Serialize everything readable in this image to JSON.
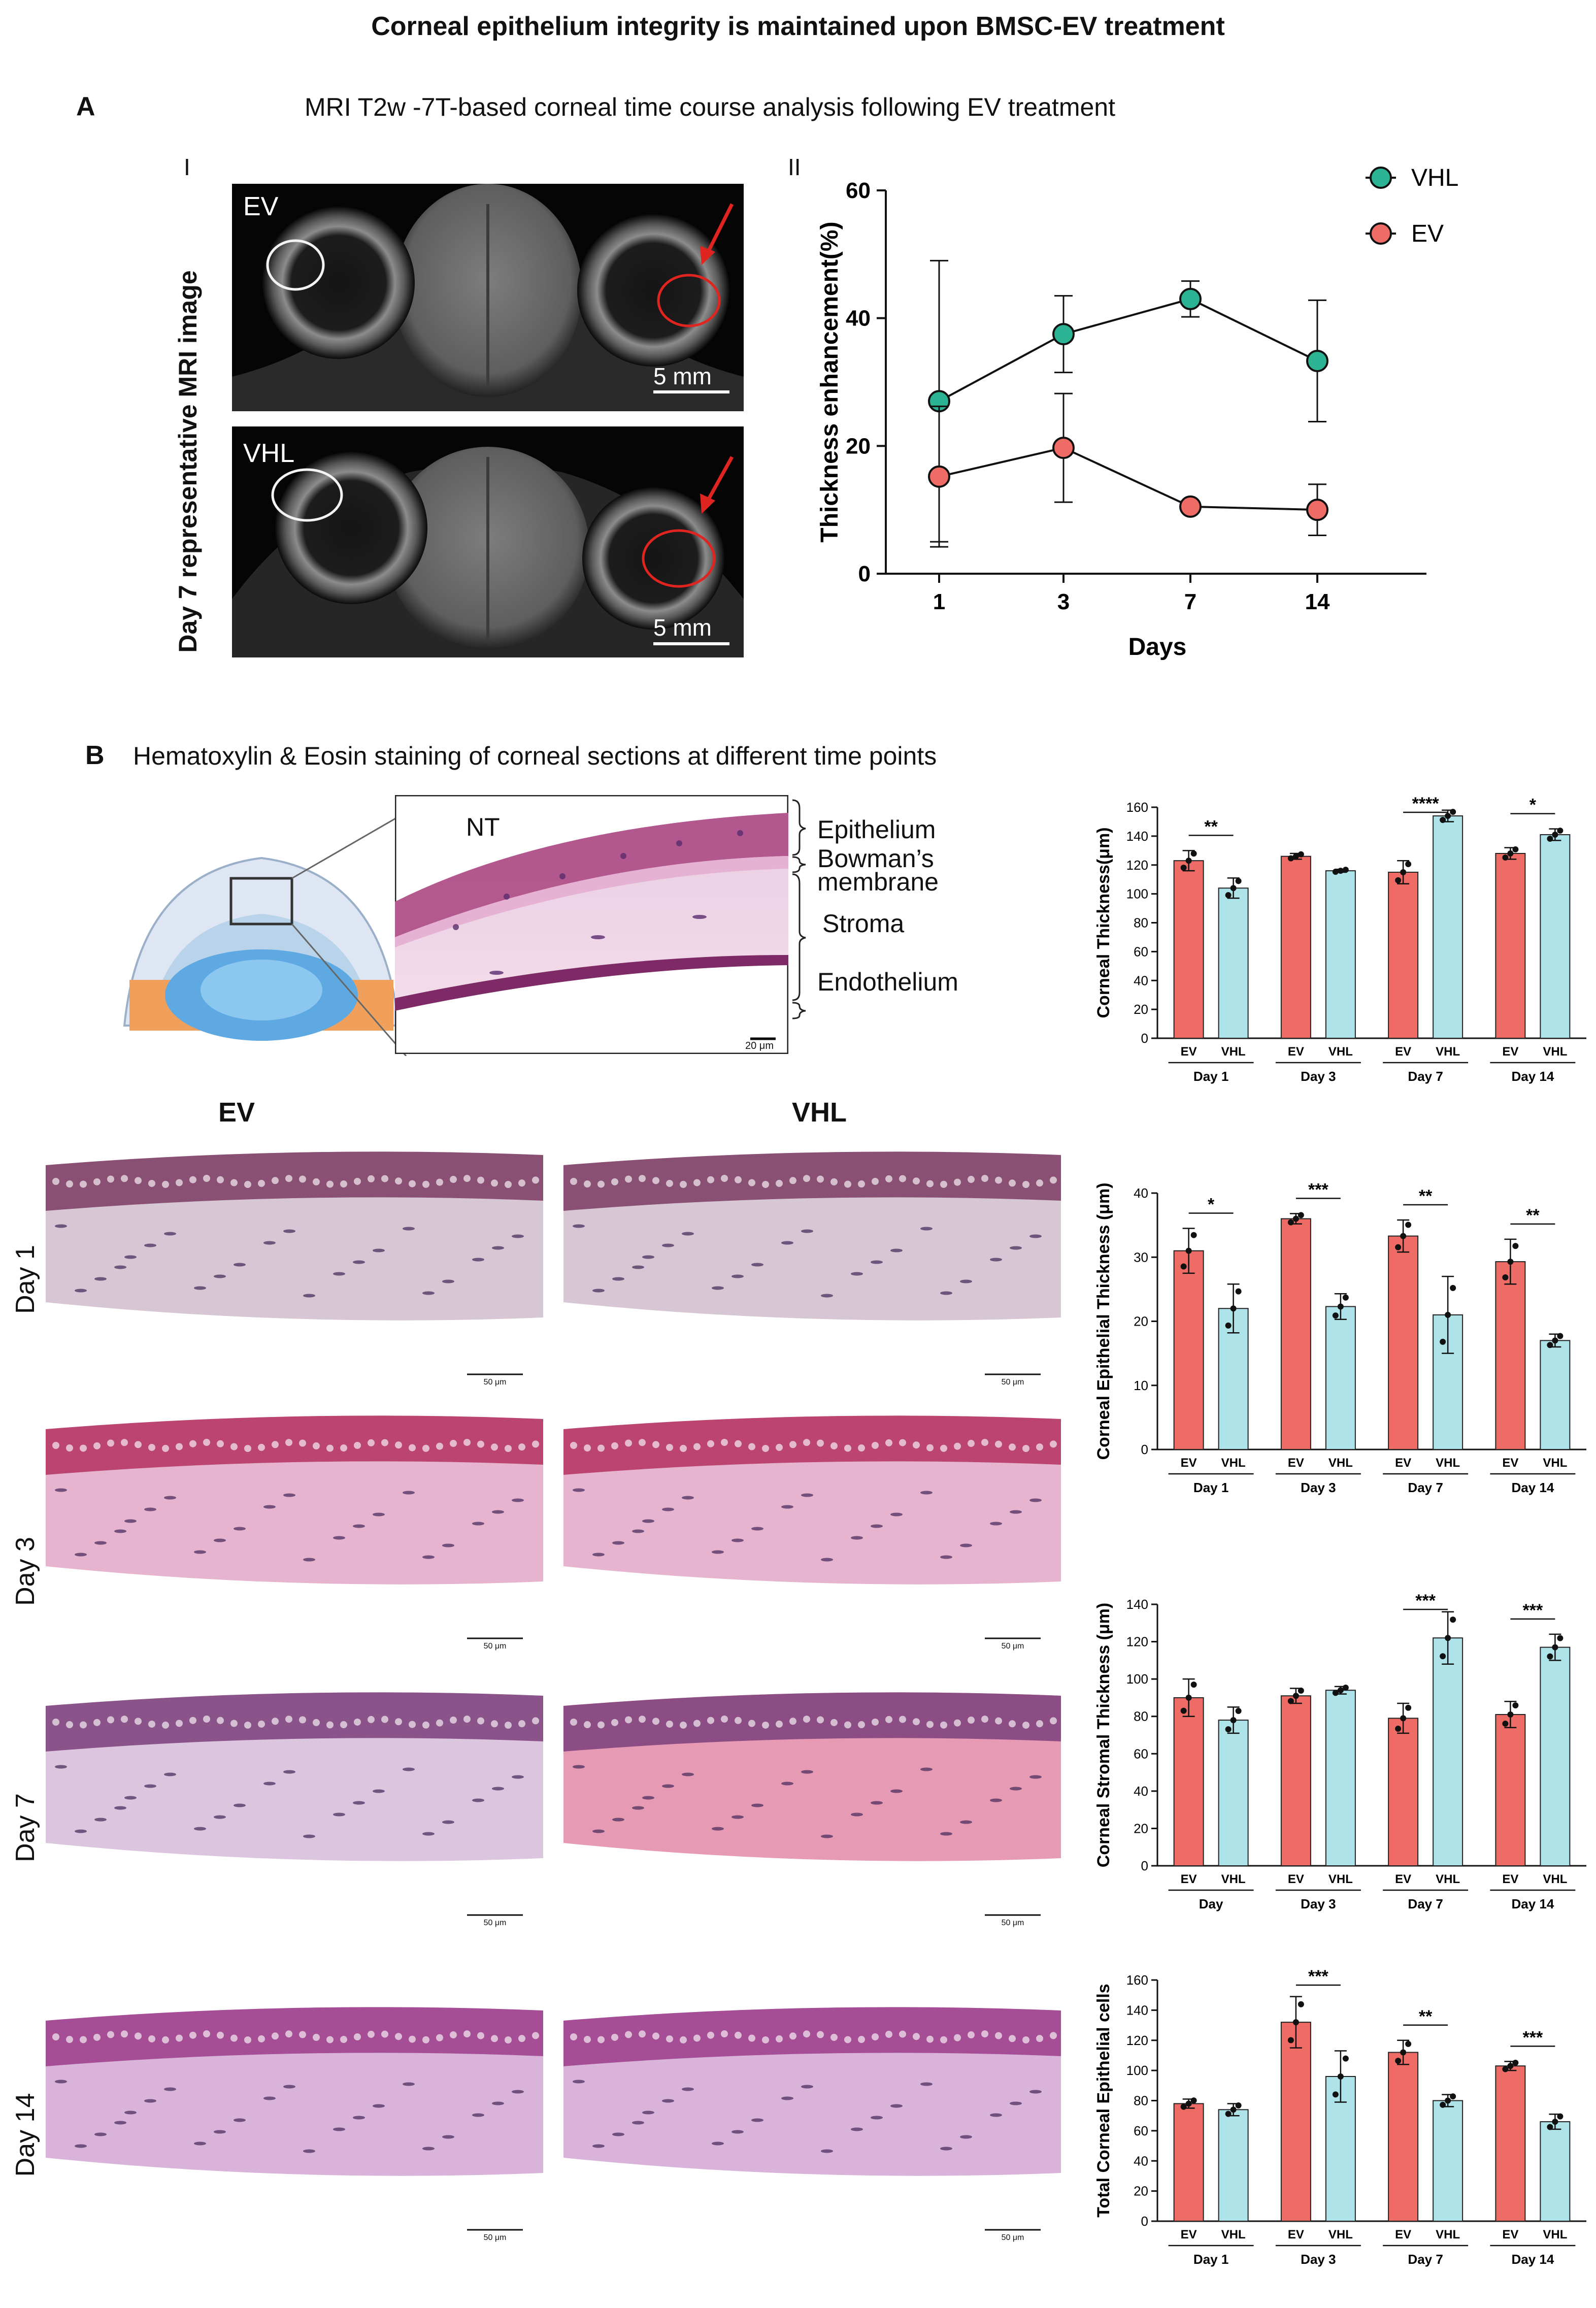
{
  "title": "Corneal epithelium integrity is maintained upon BMSC-EV treatment",
  "panel_a": {
    "letter": "A",
    "heading": "MRI T2w -7T-based corneal time course analysis following EV treatment",
    "sub_i": "I",
    "sub_ii": "II",
    "side_label": "Day 7 representative MRI image",
    "mri_ev_label": "EV",
    "mri_vhl_label": "VHL",
    "scale_bar_label": "5 mm"
  },
  "panel_b": {
    "letter": "B",
    "heading": "Hematoxylin & Eosin staining of corneal sections at different time points",
    "nt_label": "NT",
    "layers": [
      "Epithelium",
      "Bowman’s",
      "membrane",
      "Stroma",
      "Endothelium"
    ],
    "nt_scale": "20 μm",
    "col_ev": "EV",
    "col_vhl": "VHL",
    "rows": [
      "Day 1",
      "Day 3",
      "Day 7",
      "Day 14"
    ],
    "he_scale": "50 μm"
  },
  "colors": {
    "ev": "#ee6b66",
    "vhl": "#aee3ea",
    "vhl_line": "#2bb394",
    "stain_dark": "#8a2d6e",
    "stain_light": "#f1dbe8"
  },
  "chart_data": [
    {
      "type": "line",
      "ylabel": "Thickness enhancement(%)",
      "xlabel": "Days",
      "x": [
        1,
        3,
        7,
        14
      ],
      "ylim": [
        0,
        60
      ],
      "yticks": [
        0,
        20,
        40,
        60
      ],
      "legend": "top-right",
      "series": [
        {
          "name": "VHL",
          "values": [
            27,
            37.5,
            43,
            33.3
          ],
          "err": [
            22,
            6,
            2.8,
            9.5
          ]
        },
        {
          "name": "EV",
          "values": [
            15.2,
            19.7,
            10.5,
            10
          ],
          "err": [
            11,
            8.5,
            0.6,
            4
          ]
        }
      ]
    },
    {
      "type": "bar",
      "ylabel": "Corneal Thickness(μm)",
      "ylim": [
        0,
        160
      ],
      "yticks": [
        0,
        20,
        40,
        60,
        80,
        100,
        120,
        140,
        160
      ],
      "groups": [
        "Day 1",
        "Day 3",
        "Day 7",
        "Day 14"
      ],
      "bar_labels": [
        "EV",
        "VHL"
      ],
      "ev": [
        123,
        126,
        115,
        128
      ],
      "vhl": [
        104,
        116,
        154,
        141
      ],
      "ev_err": [
        7,
        2,
        8,
        4
      ],
      "vhl_err": [
        7,
        1,
        4,
        4
      ],
      "significance": [
        "**",
        "",
        "****",
        "*"
      ]
    },
    {
      "type": "bar",
      "ylabel": "Corneal Epithelial Thickness (μm)",
      "ylim": [
        0,
        40
      ],
      "yticks": [
        0,
        10,
        20,
        30,
        40
      ],
      "groups": [
        "Day 1",
        "Day 3",
        "Day 7",
        "Day 14"
      ],
      "bar_labels": [
        "EV",
        "VHL"
      ],
      "ev": [
        31,
        36,
        33.3,
        29.3
      ],
      "vhl": [
        22,
        22.3,
        21,
        17
      ],
      "ev_err": [
        3.5,
        0.8,
        2.5,
        3.5
      ],
      "vhl_err": [
        3.8,
        2,
        6,
        1
      ],
      "significance": [
        "*",
        "***",
        "**",
        "**"
      ]
    },
    {
      "type": "bar",
      "ylabel": "Corneal Stromal Thickness (μm)",
      "ylim": [
        0,
        140
      ],
      "yticks": [
        0,
        20,
        40,
        60,
        80,
        100,
        120,
        140
      ],
      "groups": [
        "Day",
        "Day 3",
        "Day 7",
        "Day 14"
      ],
      "bar_labels": [
        "EV",
        "VHL"
      ],
      "ev": [
        90,
        91,
        79,
        81
      ],
      "vhl": [
        78,
        94,
        122,
        117
      ],
      "ev_err": [
        10,
        4,
        8,
        7
      ],
      "vhl_err": [
        7,
        2,
        14,
        7
      ],
      "significance": [
        "",
        "",
        "***",
        "***"
      ]
    },
    {
      "type": "bar",
      "ylabel": "Total Corneal Epithelial cells",
      "ylim": [
        0,
        160
      ],
      "yticks": [
        0,
        20,
        40,
        60,
        80,
        100,
        120,
        140,
        160
      ],
      "groups": [
        "Day 1",
        "Day 3",
        "Day 7",
        "Day 14"
      ],
      "bar_labels": [
        "EV",
        "VHL"
      ],
      "ev": [
        78,
        132,
        112,
        103
      ],
      "vhl": [
        74,
        96,
        80,
        66
      ],
      "ev_err": [
        3,
        17,
        8,
        3
      ],
      "vhl_err": [
        4,
        17,
        4,
        5
      ],
      "significance": [
        "",
        "***",
        "**",
        "***"
      ]
    }
  ]
}
